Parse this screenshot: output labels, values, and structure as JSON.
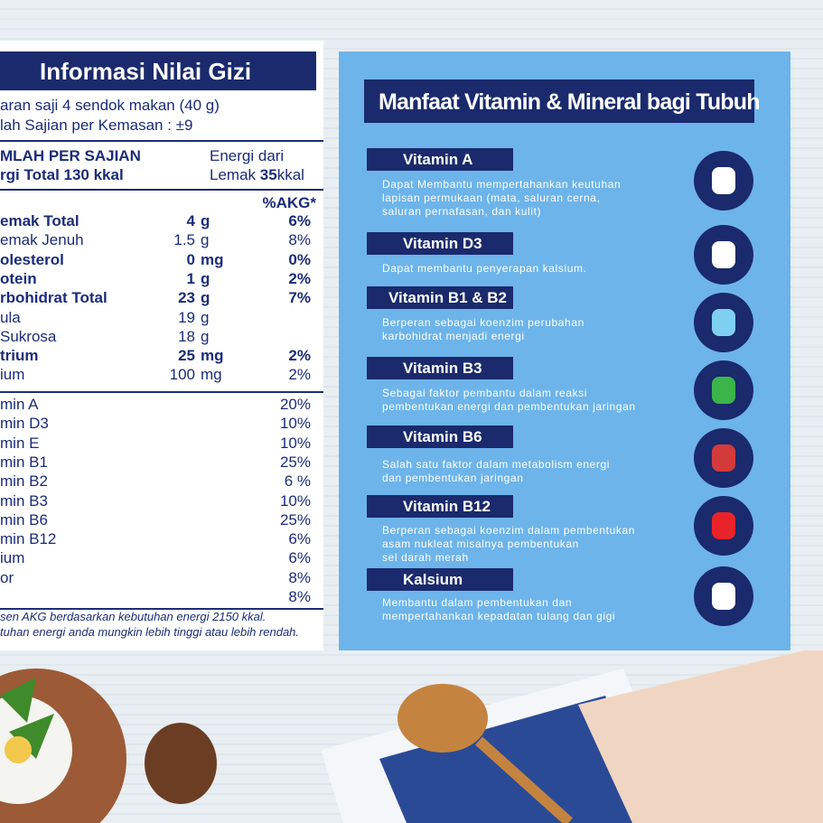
{
  "nutrition": {
    "title": "Informasi Nilai Gizi",
    "serving": "aran saji 4 sendok makan (40 g)",
    "servings_per_pack": "lah Sajian per Kemasan :  ±9",
    "per_serving": "MLAH PER SAJIAN",
    "energy_total": "rgi Total 130 kkal",
    "energy_fat_label": "Energi dari",
    "energy_fat": {
      "prefix": "Lemak",
      "value": "35",
      "unit": "kkal"
    },
    "akg_header": "%AKG*",
    "rows": [
      {
        "name": "emak Total",
        "amount": "4",
        "unit": "g",
        "akg": "6%",
        "bold": true
      },
      {
        "name": "emak Jenuh",
        "amount": "1.5",
        "unit": "g",
        "akg": "8%",
        "bold": false
      },
      {
        "name": "olesterol",
        "amount": "0",
        "unit": "mg",
        "akg": "0%",
        "bold": true
      },
      {
        "name": "otein",
        "amount": "1",
        "unit": "g",
        "akg": "2%",
        "bold": true
      },
      {
        "name": "rbohidrat Total",
        "amount": "23",
        "unit": "g",
        "akg": "7%",
        "bold": true
      },
      {
        "name": "ula",
        "amount": "19",
        "unit": "g",
        "akg": null,
        "bold": false
      },
      {
        "name": "Sukrosa",
        "amount": "18",
        "unit": "g",
        "akg": null,
        "bold": false
      },
      {
        "name": "trium",
        "amount": "25",
        "unit": "mg",
        "akg": "2%",
        "bold": true
      },
      {
        "name": "ium",
        "amount": "100",
        "unit": "mg",
        "akg": "2%",
        "bold": false
      }
    ],
    "vitamins": [
      {
        "name": "min A",
        "akg": "20%"
      },
      {
        "name": "min D3",
        "akg": "10%"
      },
      {
        "name": "min E",
        "akg": "10%"
      },
      {
        "name": "min B1",
        "akg": "25%"
      },
      {
        "name": "min B2",
        "akg": "6 %"
      },
      {
        "name": "min B3",
        "akg": "10%"
      },
      {
        "name": "min B6",
        "akg": "25%"
      },
      {
        "name": "min B12",
        "akg": "6%"
      },
      {
        "name": "ium",
        "akg": "6%"
      },
      {
        "name": "or",
        "akg": "8%"
      },
      {
        "name": null,
        "akg": "8%"
      }
    ],
    "footnotes": [
      "sen AKG berdasarkan kebutuhan energi 2150 kkal.",
      "tuhan energi anda mungkin lebih tinggi atau lebih rendah."
    ]
  },
  "benefits": {
    "title": "Manfaat Vitamin & Mineral bagi Tubuh",
    "items": [
      {
        "name": "Vitamin A",
        "lines": [
          "Dapat Membantu mempertahankan keutuhan",
          "lapisan permukaan (mata, saluran cerna,",
          "saluran pernafasan, dan kulit)"
        ]
      },
      {
        "name": "Vitamin D3",
        "lines": [
          "Dapat membantu penyerapan kalsium."
        ]
      },
      {
        "name": "Vitamin B1 & B2",
        "lines": [
          "Berperan sebagai koenzim perubahan",
          "karbohidrat menjadi energi"
        ]
      },
      {
        "name": "Vitamin B3",
        "lines": [
          "Sebagai faktor pembantu dalam reaksi",
          "pembentukan energi dan pembentukan jaringan"
        ]
      },
      {
        "name": "Vitamin B6",
        "lines": [
          "Salah satu faktor dalam metabolism energi",
          "dan pembentukan jaringan"
        ]
      },
      {
        "name": "Vitamin B12",
        "lines": [
          "Berperan sebagai koenzim dalam pembentukan",
          "asam nukleat misalnya pembentukan",
          " sel darah merah"
        ]
      },
      {
        "name": "Kalsium",
        "lines": [
          "Membantu dalam pembentukan dan",
          "mempertahankan kepadatan tulang dan gigi"
        ]
      }
    ]
  }
}
